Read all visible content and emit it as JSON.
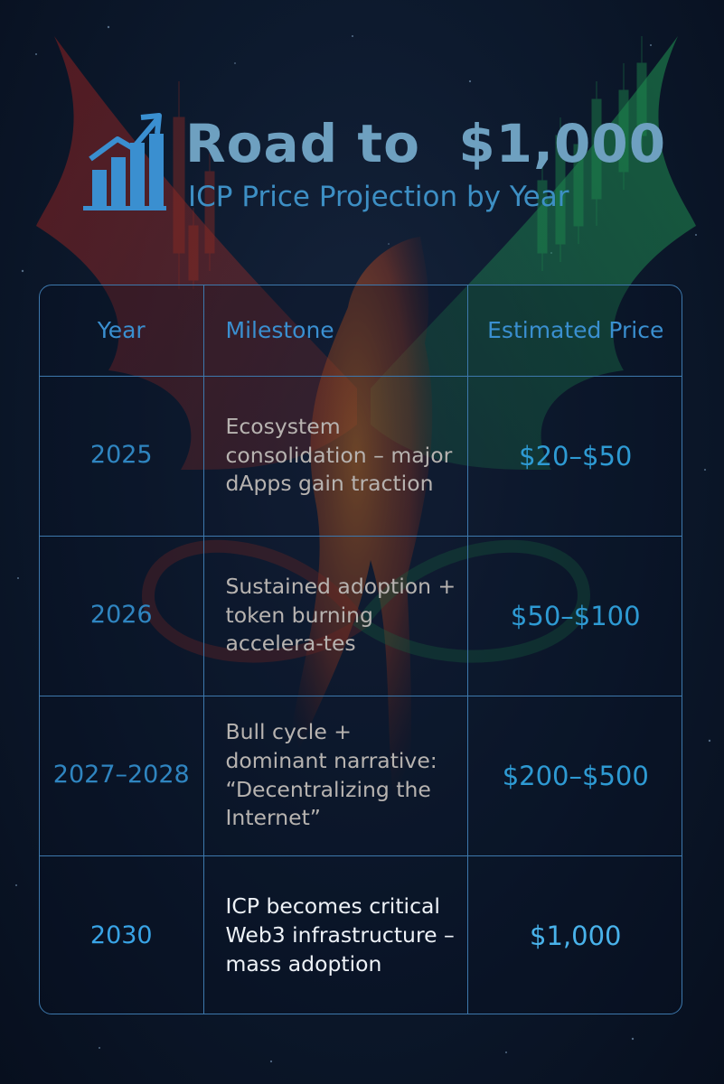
{
  "header": {
    "title": "Road to  $1,000",
    "subtitle": "ICP Price Projection by Year",
    "icon": "rising-bar-chart-icon"
  },
  "table": {
    "columns": [
      "Year",
      "Milestone",
      "Estimated Price"
    ],
    "rows": [
      {
        "year": "2025",
        "milestone": "Ecosystem consolidation – major dApps gain traction",
        "price": "$20–$50"
      },
      {
        "year": "2026",
        "milestone": "Sustained adoption + token burning accelera-tes",
        "price": "$50–$100"
      },
      {
        "year": "2027–2028",
        "milestone": "Bull cycle + dominant narrative: “Decentralizing the Internet”",
        "price": "$200–$500"
      },
      {
        "year": "2030",
        "milestone": "ICP becomes critical Web3 infrastructure – mass adoption",
        "price": "$1,000"
      }
    ]
  },
  "colors": {
    "background": "#0b1628",
    "border": "#3d78ac",
    "accent": "#3a8fd0",
    "title": "#6ea0c0",
    "phoenix_red": "#c0392b",
    "phoenix_orange": "#e67e22",
    "phoenix_green": "#27ae60"
  }
}
